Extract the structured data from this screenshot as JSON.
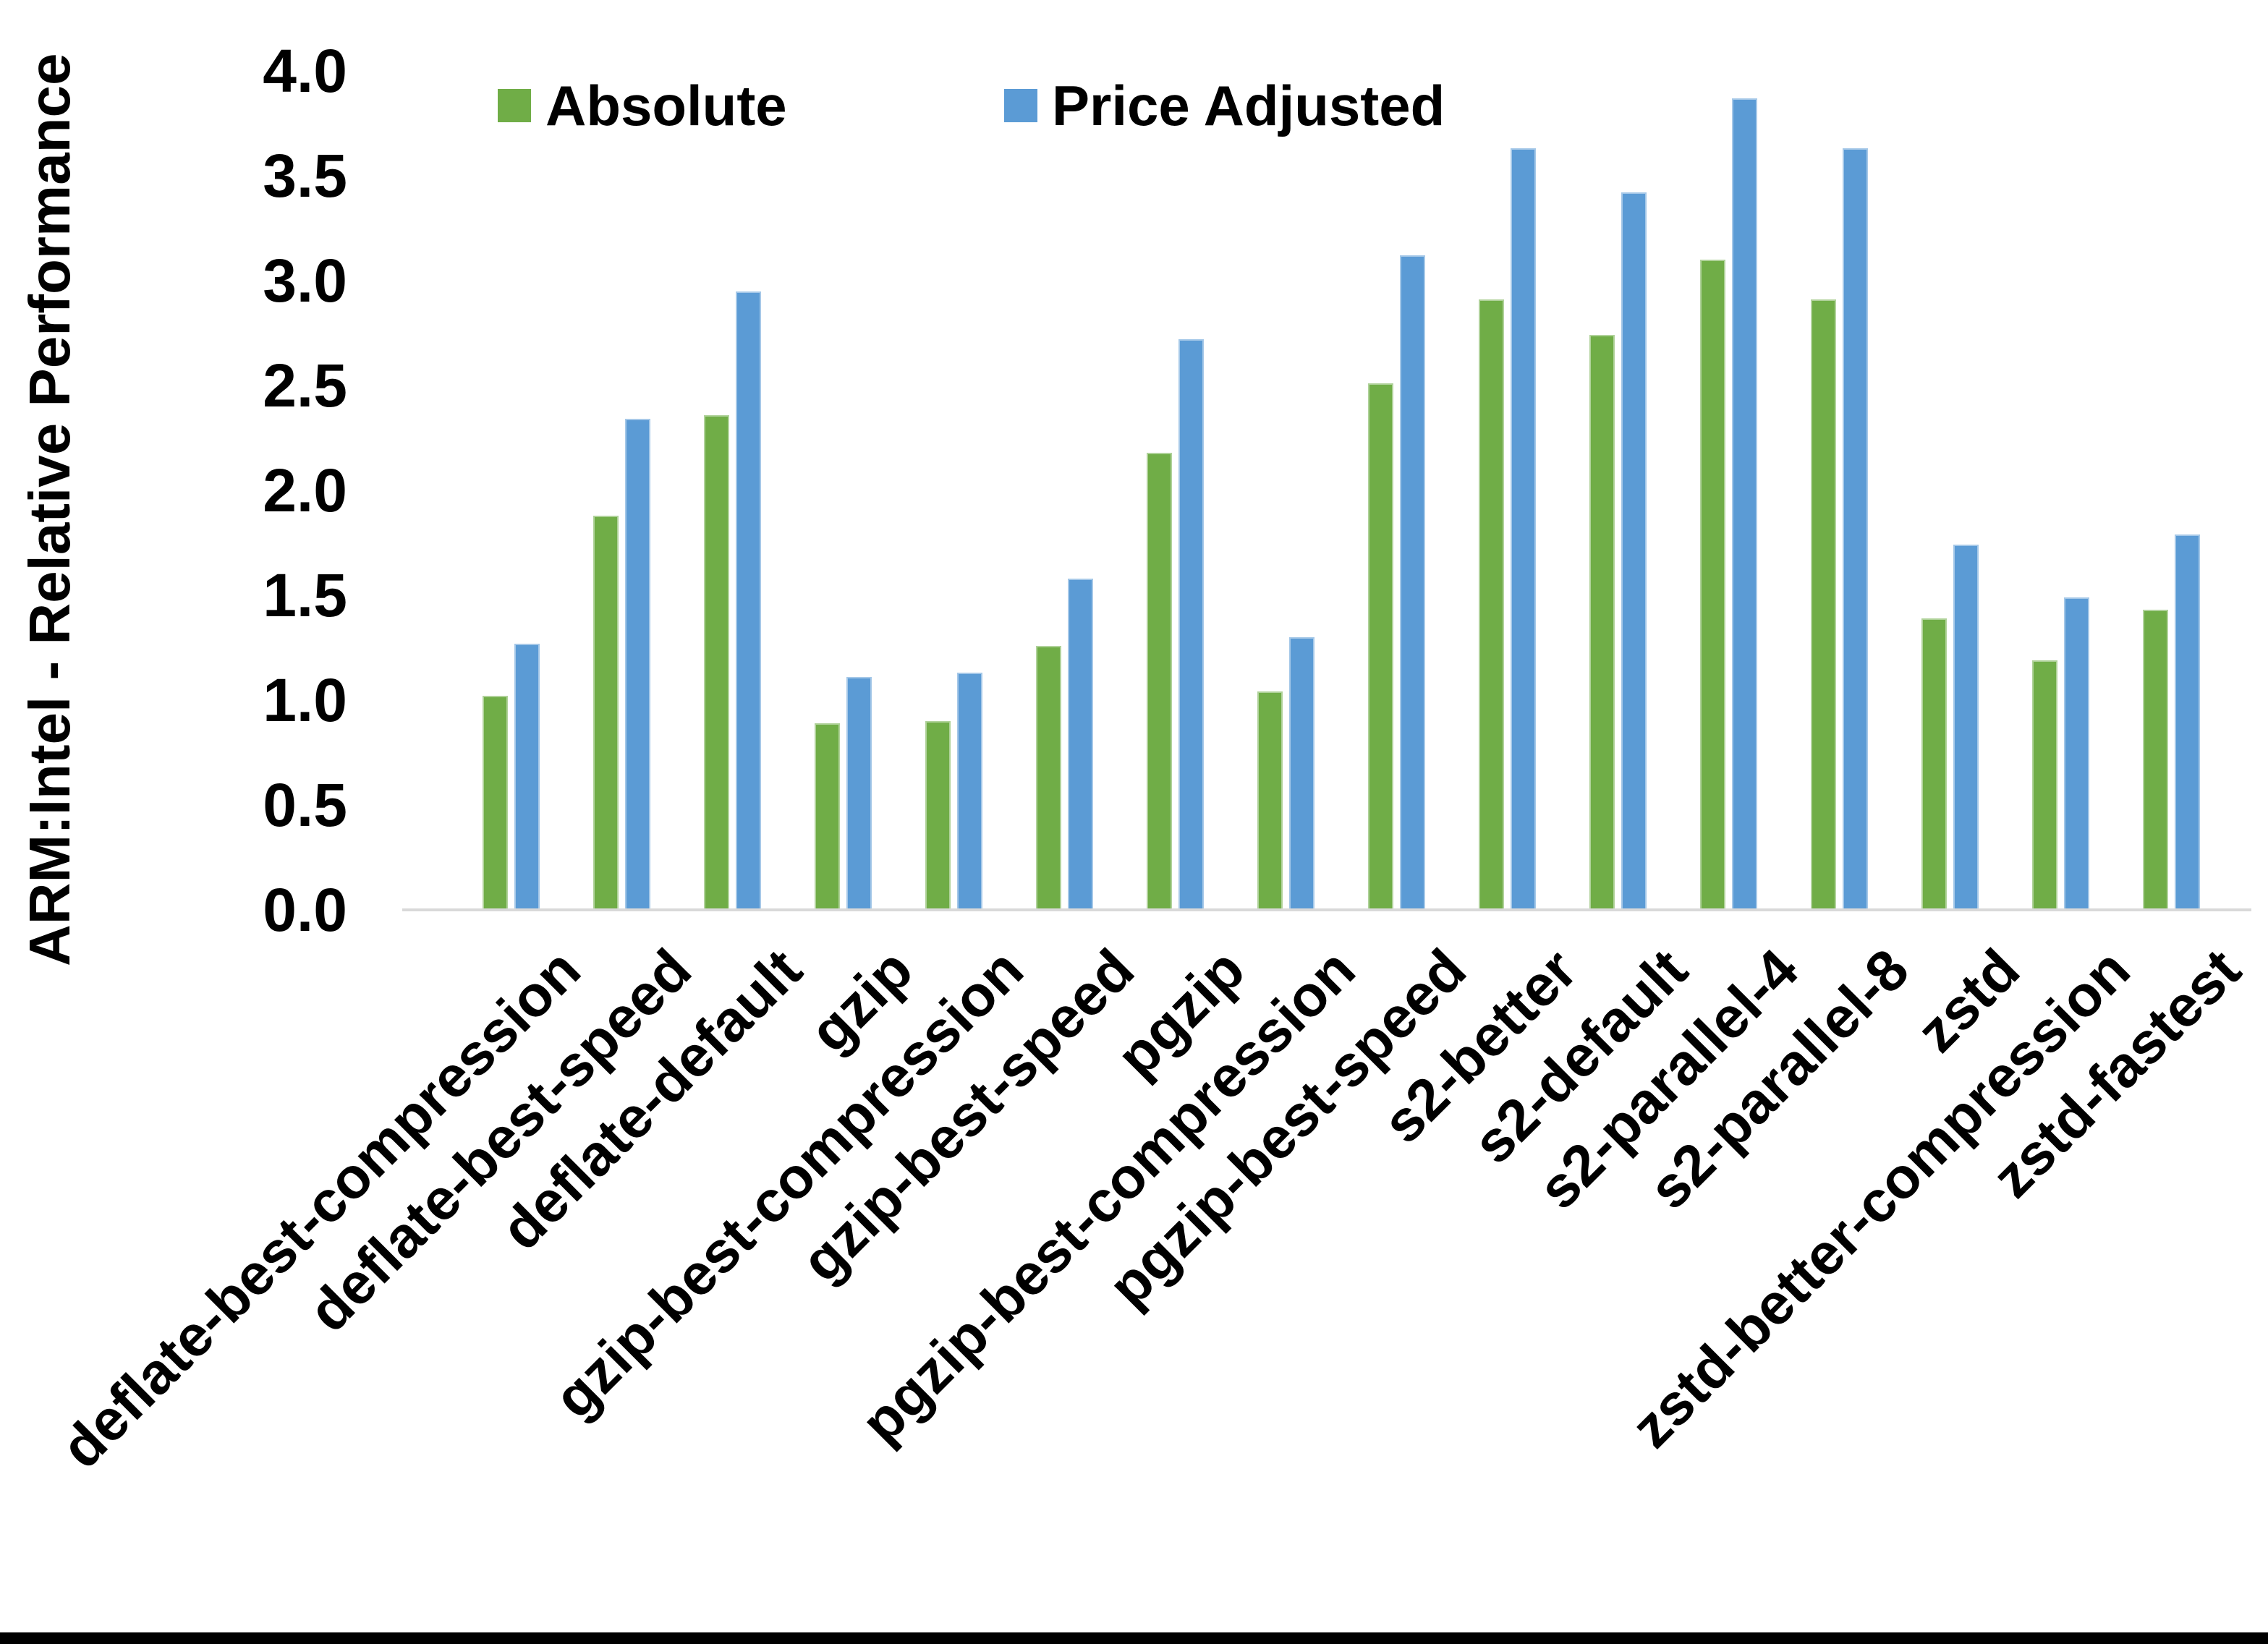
{
  "chart_data": {
    "type": "bar",
    "title": "",
    "xlabel": "",
    "ylabel": "ARM:Intel - Relative Performance",
    "ylim": [
      0.0,
      4.0
    ],
    "ytick_step": 0.5,
    "ytick_labels": [
      "4.0",
      "3.5",
      "3.0",
      "2.5",
      "2.0",
      "1.5",
      "1.0",
      "0.5",
      "0.0"
    ],
    "grid": false,
    "legend_position": "top-center",
    "axis_line_color": "#D9D9D9",
    "categories": [
      "deflate-best-compression",
      "deflate-best-speed",
      "deflate-default",
      "gzip",
      "gzip-best-compression",
      "gzip-best-speed",
      "pgzip",
      "pgzip-best-compression",
      "pgzip-best-speed",
      "s2-better",
      "s2-default",
      "s2-parallel-4",
      "s2-parallel-8",
      "zstd",
      "zstd-better-compression",
      "zstd-fastest"
    ],
    "series": [
      {
        "name": "Absolute",
        "color": "#70AD47",
        "values": [
          1.02,
          1.88,
          2.36,
          0.89,
          0.9,
          1.26,
          2.18,
          1.04,
          2.51,
          2.91,
          2.74,
          3.1,
          2.91,
          1.39,
          1.19,
          1.43
        ]
      },
      {
        "name": "Price Adjusted",
        "color": "#5B9BD5",
        "values": [
          1.27,
          2.34,
          2.95,
          1.11,
          1.13,
          1.58,
          2.72,
          1.3,
          3.12,
          3.63,
          3.42,
          3.87,
          3.63,
          1.74,
          1.49,
          1.79
        ]
      }
    ]
  },
  "legend": {
    "items": [
      {
        "label": "Absolute",
        "color": "#70AD47"
      },
      {
        "label": "Price Adjusted",
        "color": "#5B9BD5"
      }
    ]
  },
  "frame": {
    "bottom_border_color": "#000000"
  }
}
